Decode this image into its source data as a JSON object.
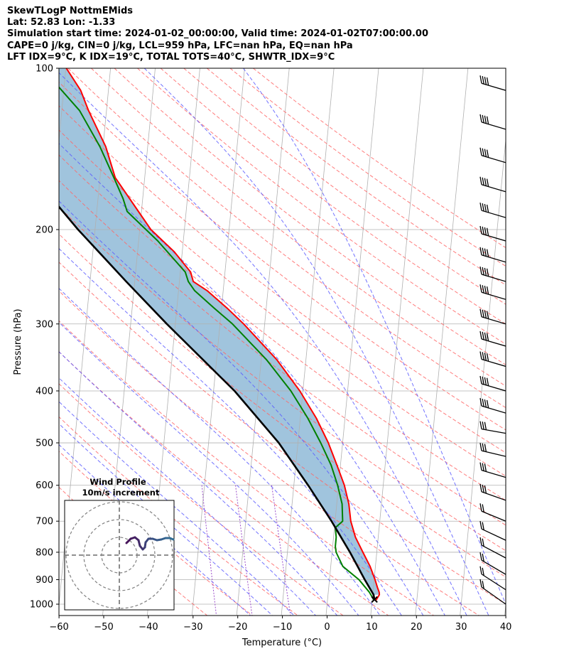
{
  "header": {
    "line1": "SkewTLogP NottmEMids",
    "line2": "Lat: 52.83   Lon: -1.33",
    "line3": "Simulation start time: 2024-01-02_00:00:00, Valid time: 2024-01-02T07:00:00.00",
    "line4": "CAPE=0 j/kg, CIN=0 j/kg, LCL=959 hPa, LFC=nan hPa, EQ=nan hPa",
    "line5": "LFT IDX=9°C, K IDX=19°C, TOTAL TOTS=40°C, SHWTR_IDX=9°C"
  },
  "chart_data": {
    "type": "line",
    "subtype": "skew-T log-p",
    "xlabel": "Temperature (°C)",
    "ylabel": "Pressure (hPa)",
    "xlim": [
      -60,
      40
    ],
    "ylim": [
      1050,
      100
    ],
    "y_scale": "log",
    "x_ticks": [
      "−60",
      "−50",
      "−40",
      "−30",
      "−20",
      "−10",
      "0",
      "10",
      "20",
      "30",
      "40"
    ],
    "x_tick_values": [
      -60,
      -50,
      -40,
      -30,
      -20,
      -10,
      0,
      10,
      20,
      30,
      40
    ],
    "y_ticks": [
      "100",
      "200",
      "300",
      "400",
      "500",
      "600",
      "700",
      "800",
      "900",
      "1000"
    ],
    "y_tick_values": [
      100,
      200,
      300,
      400,
      500,
      600,
      700,
      800,
      900,
      1000
    ],
    "grid": true,
    "colors": {
      "temperature": "#ff0000",
      "dewpoint": "#008000",
      "parcel": "#000000",
      "shade": "#a0c4dd",
      "dry_adiabat": "#ff6666",
      "moist_adiabat": "#5a5aff",
      "mixing_ratio": "#9b4dca",
      "isotherm_grid": "#b0b0b0"
    },
    "series": [
      {
        "role": "temperature",
        "p": [
          985,
          960,
          950,
          930,
          900,
          850,
          800,
          750,
          700,
          650,
          600,
          550,
          500,
          450,
          400,
          350,
          300,
          280,
          260,
          250,
          240,
          220,
          200,
          180,
          160,
          140,
          120,
          110,
          100
        ],
        "t": [
          10.8,
          11.5,
          11.4,
          10.9,
          10.2,
          8.8,
          6.9,
          4.9,
          3.5,
          2.7,
          1.3,
          -0.8,
          -3.2,
          -6.4,
          -10.7,
          -16.5,
          -24.7,
          -28.8,
          -33.6,
          -36.9,
          -37.7,
          -41.8,
          -47.5,
          -51.8,
          -56.6,
          -59.4,
          -64.0,
          -66.2,
          -69.9
        ]
      },
      {
        "role": "dewpoint",
        "p": [
          985,
          950,
          900,
          850,
          800,
          780,
          750,
          720,
          700,
          650,
          600,
          550,
          500,
          450,
          400,
          350,
          300,
          280,
          260,
          250,
          240,
          210,
          185,
          175,
          160,
          140,
          120,
          100
        ],
        "t": [
          10.5,
          9.2,
          6.6,
          2.7,
          0.9,
          0.6,
          0.6,
          0.2,
          1.7,
          1.2,
          -0.2,
          -2.1,
          -4.9,
          -8.3,
          -12.7,
          -18.8,
          -27.2,
          -31.7,
          -36.4,
          -38.0,
          -38.9,
          -45.7,
          -53.2,
          -54.4,
          -56.9,
          -60.7,
          -66.0,
          -75.3
        ]
      },
      {
        "role": "parcel",
        "p": [
          980,
          960,
          900,
          850,
          800,
          700,
          600,
          500,
          400,
          300,
          250,
          200,
          150,
          120,
          100
        ],
        "t": [
          10.5,
          10.2,
          7.9,
          6.0,
          4.0,
          -0.8,
          -6.8,
          -14.3,
          -25.3,
          -41.9,
          -51.9,
          -63.8,
          -77.8,
          -87.8,
          -96.3
        ]
      }
    ],
    "inset": {
      "title": "Wind Profile",
      "subtitle": "10m/s increment"
    }
  }
}
